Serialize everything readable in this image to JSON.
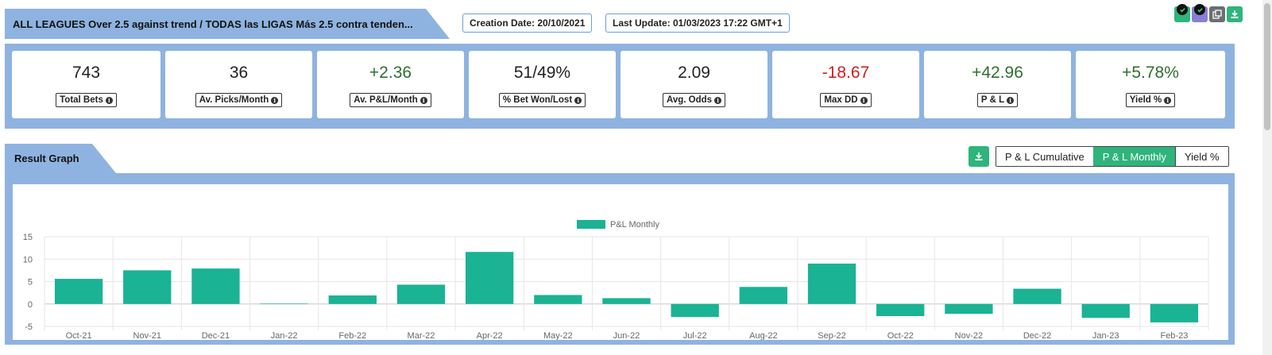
{
  "header": {
    "title": "ALL LEAGUES Over 2.5 against trend / TODAS las LIGAS Más 2.5 contra tenden...",
    "creation_date": "Creation Date: 20/10/2021",
    "last_update": "Last Update: 01/03/2023 17:22 GMT+1"
  },
  "top_icons": [
    "check-badge-icon",
    "check-badge-icon",
    "copy-icon",
    "download-icon"
  ],
  "stats": [
    {
      "value": "743",
      "label": "Total Bets",
      "tone": "neu"
    },
    {
      "value": "36",
      "label": "Av. Picks/Month",
      "tone": "neu"
    },
    {
      "value": "+2.36",
      "label": "Av. P&L/Month",
      "tone": "pos"
    },
    {
      "value": "51/49%",
      "label": "% Bet Won/Lost",
      "tone": "neu"
    },
    {
      "value": "2.09",
      "label": "Avg. Odds",
      "tone": "neu"
    },
    {
      "value": "-18.67",
      "label": "Max DD",
      "tone": "neg"
    },
    {
      "value": "+42.96",
      "label": "P & L",
      "tone": "pos"
    },
    {
      "value": "+5.78%",
      "label": "Yield %",
      "tone": "pos"
    }
  ],
  "result_graph": {
    "title": "Result Graph",
    "tabs": [
      {
        "label": "P & L Cumulative",
        "active": false
      },
      {
        "label": "P & L Monthly",
        "active": true
      },
      {
        "label": "Yield %",
        "active": false
      }
    ]
  },
  "colors": {
    "accent": "#2fb47c",
    "bar": "#1ab394",
    "panel": "#8fb3e0",
    "positive": "#2f6f2f",
    "negative": "#cc1f1f"
  },
  "chart_data": {
    "type": "bar",
    "legend": "P&L Monthly",
    "legend_position": "top",
    "grid": true,
    "categories": [
      "Oct-21",
      "Nov-21",
      "Dec-21",
      "Jan-22",
      "Feb-22",
      "Mar-22",
      "Apr-22",
      "May-22",
      "Jun-22",
      "Jul-22",
      "Aug-22",
      "Sep-22",
      "Oct-22",
      "Nov-22",
      "Dec-22",
      "Jan-23",
      "Feb-23"
    ],
    "series": [
      {
        "name": "P&L Monthly",
        "values": [
          5.6,
          7.5,
          7.9,
          0.1,
          1.9,
          4.3,
          11.6,
          2.0,
          1.3,
          -2.9,
          3.8,
          9.0,
          -2.7,
          -2.2,
          3.4,
          -3.1,
          -4.1
        ]
      }
    ],
    "ylim": [
      -5,
      15
    ],
    "yticks": [
      "15",
      "10",
      "5",
      "0",
      "-5"
    ],
    "ytick_values": [
      15,
      10,
      5,
      0,
      -5
    ]
  }
}
